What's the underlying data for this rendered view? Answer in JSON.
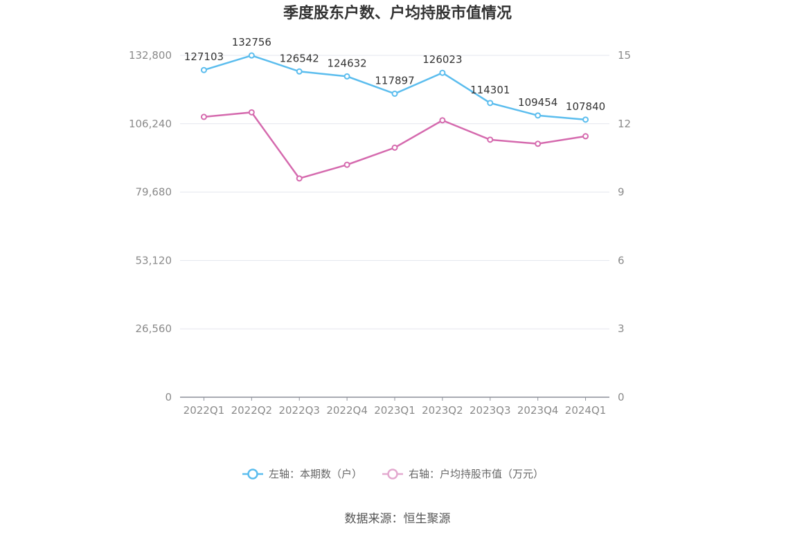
{
  "chart_data": {
    "type": "line",
    "title": "季度股东户数、户均持股市值情况",
    "categories": [
      "2022Q1",
      "2022Q2",
      "2022Q3",
      "2022Q4",
      "2023Q1",
      "2023Q2",
      "2023Q3",
      "2023Q4",
      "2024Q1"
    ],
    "y_left": {
      "ylim": [
        0,
        132800
      ],
      "ticks": [
        "0",
        "26,560",
        "53,120",
        "79,680",
        "106,240",
        "132,800"
      ],
      "tick_values": [
        0,
        26560,
        53120,
        79680,
        106240,
        132800
      ]
    },
    "y_right": {
      "ylim": [
        0,
        15
      ],
      "ticks": [
        "0",
        "3",
        "6",
        "9",
        "12",
        "15"
      ],
      "tick_values": [
        0,
        3,
        6,
        9,
        12,
        15
      ]
    },
    "series": [
      {
        "name": "左轴：本期数（户）",
        "axis": "left",
        "color": "#5bbdee",
        "values": [
          127103,
          132756,
          126542,
          124632,
          117897,
          126023,
          114301,
          109454,
          107840
        ],
        "labels": [
          "127103",
          "132756",
          "126542",
          "124632",
          "117897",
          "126023",
          "114301",
          "109454",
          "107840"
        ]
      },
      {
        "name": "右轴：户均持股市值（万元）",
        "axis": "right",
        "color": "#d56aae",
        "values": [
          12.3,
          12.5,
          9.6,
          10.2,
          10.95,
          12.15,
          11.3,
          11.12,
          11.45
        ]
      }
    ],
    "grid": true,
    "legend": "bottom"
  },
  "source": "数据来源：恒生聚源"
}
